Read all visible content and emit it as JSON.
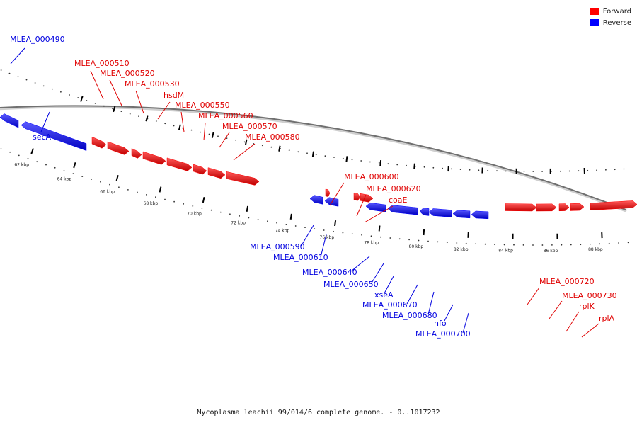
{
  "legend": {
    "forward_label": "Forward",
    "reverse_label": "Reverse",
    "forward_color": "#ff0000",
    "reverse_color": "#0000ff"
  },
  "caption": "Mycoplasma leachii 99/014/6 complete genome. - 0..1017232",
  "axis": {
    "unit": "kbp",
    "ticks": [
      "62 kbp",
      "64 kbp",
      "66 kbp",
      "68 kbp",
      "70 kbp",
      "72 kbp",
      "74 kbp",
      "76 kbp",
      "78 kbp",
      "80 kbp",
      "82 kbp",
      "84 kbp",
      "86 kbp",
      "88 kbp"
    ]
  },
  "genes": [
    {
      "name": "MLEA_000490",
      "strand": "reverse"
    },
    {
      "name": "secA",
      "strand": "reverse"
    },
    {
      "name": "MLEA_000510",
      "strand": "forward"
    },
    {
      "name": "MLEA_000520",
      "strand": "forward"
    },
    {
      "name": "MLEA_000530",
      "strand": "forward"
    },
    {
      "name": "hsdM",
      "strand": "forward"
    },
    {
      "name": "MLEA_000550",
      "strand": "forward"
    },
    {
      "name": "MLEA_000560",
      "strand": "forward"
    },
    {
      "name": "MLEA_000570",
      "strand": "forward"
    },
    {
      "name": "MLEA_000580",
      "strand": "forward"
    },
    {
      "name": "MLEA_000590",
      "strand": "reverse"
    },
    {
      "name": "MLEA_000600",
      "strand": "forward"
    },
    {
      "name": "MLEA_000610",
      "strand": "reverse"
    },
    {
      "name": "MLEA_000620",
      "strand": "forward"
    },
    {
      "name": "coaE",
      "strand": "forward"
    },
    {
      "name": "MLEA_000640",
      "strand": "reverse"
    },
    {
      "name": "MLEA_000650",
      "strand": "reverse"
    },
    {
      "name": "xseA",
      "strand": "reverse"
    },
    {
      "name": "MLEA_000670",
      "strand": "reverse"
    },
    {
      "name": "MLEA_000680",
      "strand": "reverse"
    },
    {
      "name": "nfo",
      "strand": "reverse"
    },
    {
      "name": "MLEA_000700",
      "strand": "reverse"
    },
    {
      "name": "MLEA_000720",
      "strand": "forward"
    },
    {
      "name": "MLEA_000730",
      "strand": "forward"
    },
    {
      "name": "rplK",
      "strand": "forward"
    },
    {
      "name": "rplA",
      "strand": "forward"
    }
  ]
}
